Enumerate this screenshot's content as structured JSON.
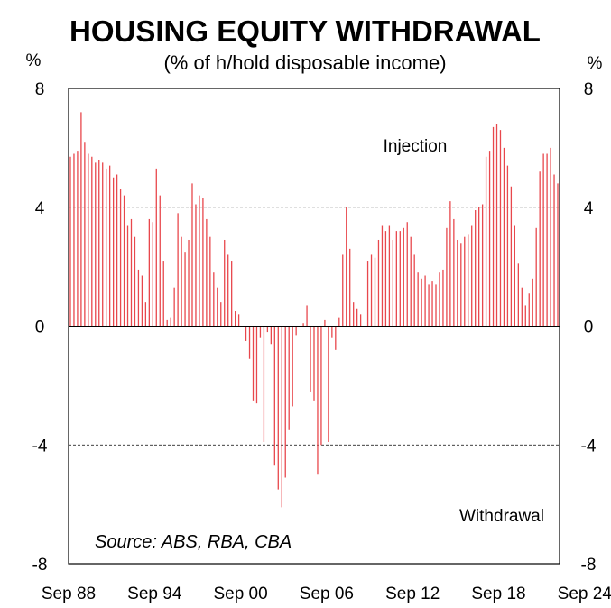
{
  "chart_data": {
    "type": "bar",
    "title": "HOUSING EQUITY WITHDRAWAL",
    "subtitle": "(% of h/hold disposable income)",
    "ylabel_left": "%",
    "ylabel_right": "%",
    "ylim": [
      -8,
      8
    ],
    "yticks": [
      "8",
      "4",
      "0",
      "-4",
      "-8"
    ],
    "xtick_labels": [
      "Sep 88",
      "Sep 94",
      "Sep 00",
      "Sep 06",
      "Sep 12",
      "Sep 18",
      "Sep 24"
    ],
    "annotations": {
      "upper": "Injection",
      "lower": "Withdrawal"
    },
    "source": "Source: ABS, RBA, CBA",
    "bar_color": "#e8474c",
    "gridlines_at": [
      4,
      -4
    ],
    "period_start": "Sep 1988",
    "frequency": "quarterly",
    "series": [
      {
        "name": "Housing equity withdrawal",
        "values": [
          5.7,
          5.8,
          5.9,
          7.2,
          6.2,
          5.8,
          5.7,
          5.5,
          5.6,
          5.5,
          5.3,
          5.4,
          5.0,
          5.1,
          4.6,
          4.4,
          3.4,
          3.6,
          3.0,
          1.9,
          1.7,
          0.8,
          3.6,
          3.5,
          5.3,
          4.4,
          2.2,
          0.2,
          0.3,
          1.3,
          3.8,
          3.0,
          2.5,
          2.9,
          4.8,
          4.1,
          4.4,
          4.3,
          3.6,
          3.0,
          1.8,
          1.3,
          0.8,
          2.9,
          2.4,
          2.2,
          0.5,
          0.4,
          0.0,
          -0.5,
          -1.1,
          -2.5,
          -2.6,
          -0.4,
          -3.9,
          -0.2,
          -0.6,
          -4.7,
          -5.5,
          -6.1,
          -5.1,
          -3.5,
          -2.7,
          -0.3,
          0.0,
          0.1,
          0.7,
          -2.2,
          -2.5,
          -5.0,
          -4.0,
          0.2,
          -3.9,
          -0.4,
          -0.8,
          0.3,
          2.4,
          4.0,
          2.6,
          0.8,
          0.6,
          0.4,
          0.0,
          2.2,
          2.4,
          2.3,
          2.9,
          3.4,
          3.2,
          3.4,
          2.9,
          3.2,
          3.2,
          3.3,
          3.5,
          3.0,
          2.4,
          1.8,
          1.6,
          1.7,
          1.4,
          1.5,
          1.4,
          1.8,
          1.9,
          3.3,
          4.2,
          3.6,
          2.9,
          2.8,
          3.0,
          3.1,
          3.4,
          3.9,
          4.0,
          4.1,
          5.7,
          5.9,
          6.7,
          6.8,
          6.6,
          6.0,
          5.4,
          4.7,
          3.4,
          2.1,
          1.3,
          0.7,
          1.1,
          1.6,
          3.3,
          5.2,
          5.8,
          5.8,
          6.0,
          5.1,
          4.8
        ]
      }
    ]
  }
}
